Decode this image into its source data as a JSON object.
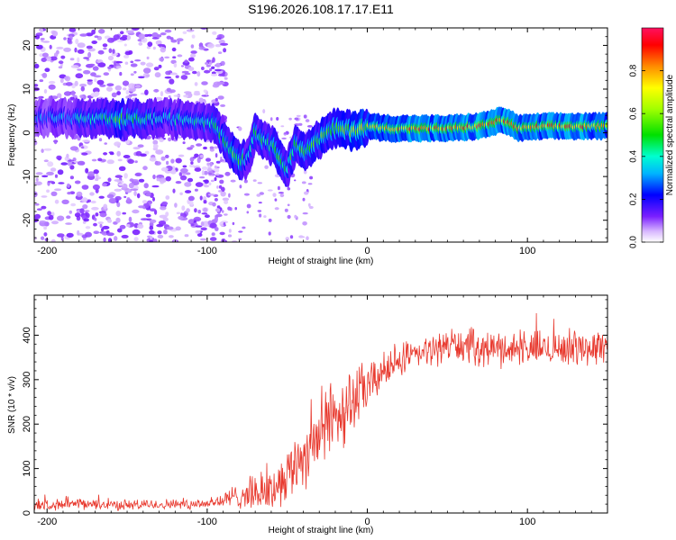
{
  "title": "S196.2026.108.17.17.E11",
  "colors": {
    "line": "#e8392e",
    "axis": "#000000"
  },
  "chart_data": [
    {
      "type": "heatmap",
      "title": "S196.2026.108.17.17.E11",
      "xlabel": "Height of straight line (km)",
      "ylabel": "Frequency (Hz)",
      "xlim": [
        -208,
        150
      ],
      "ylim": [
        -25,
        24
      ],
      "x_ticks": [
        -200,
        -100,
        0,
        100
      ],
      "x_tick_labels": [
        "-200",
        "-100",
        "0",
        "100"
      ],
      "y_ticks": [
        -20,
        -10,
        0,
        10,
        20
      ],
      "y_tick_labels": [
        "-20",
        "-10",
        "0",
        "10",
        "20"
      ],
      "colorbar": {
        "label": "Normalized spectral amplitude",
        "range": [
          0,
          1
        ],
        "ticks": [
          0.0,
          0.2,
          0.4,
          0.6,
          0.8
        ],
        "tick_labels": [
          "0.0",
          "0.2",
          "0.4",
          "0.6",
          "0.8"
        ]
      },
      "ridge": [
        {
          "x": -205,
          "f": 3.5,
          "amp": 0.3
        },
        {
          "x": -190,
          "f": 3.5,
          "amp": 0.35
        },
        {
          "x": -175,
          "f": 3.2,
          "amp": 0.4
        },
        {
          "x": -155,
          "f": 3.0,
          "amp": 0.55
        },
        {
          "x": -130,
          "f": 3.3,
          "amp": 0.4
        },
        {
          "x": -110,
          "f": 3.0,
          "amp": 0.4
        },
        {
          "x": -95,
          "f": 2.5,
          "amp": 0.45
        },
        {
          "x": -90,
          "f": -1.0,
          "amp": 0.45
        },
        {
          "x": -85,
          "f": -4.0,
          "amp": 0.55
        },
        {
          "x": -80,
          "f": -6.0,
          "amp": 0.55
        },
        {
          "x": -75,
          "f": -6.0,
          "amp": 0.45
        },
        {
          "x": -70,
          "f": 0.0,
          "amp": 0.45
        },
        {
          "x": -62,
          "f": -2.0,
          "amp": 0.5
        },
        {
          "x": -55,
          "f": -5.0,
          "amp": 0.55
        },
        {
          "x": -50,
          "f": -8.0,
          "amp": 0.5
        },
        {
          "x": -45,
          "f": -3.0,
          "amp": 0.55
        },
        {
          "x": -38,
          "f": -4.0,
          "amp": 0.5
        },
        {
          "x": -30,
          "f": -1.5,
          "amp": 0.55
        },
        {
          "x": -20,
          "f": 1.0,
          "amp": 0.6
        },
        {
          "x": -10,
          "f": 0.5,
          "amp": 0.65
        },
        {
          "x": 0,
          "f": 1.5,
          "amp": 0.7
        },
        {
          "x": 15,
          "f": 1.0,
          "amp": 0.85
        },
        {
          "x": 30,
          "f": 1.0,
          "amp": 0.9
        },
        {
          "x": 50,
          "f": 1.0,
          "amp": 0.8
        },
        {
          "x": 70,
          "f": 1.5,
          "amp": 0.9
        },
        {
          "x": 85,
          "f": 3.0,
          "amp": 0.9
        },
        {
          "x": 95,
          "f": 1.0,
          "amp": 0.85
        },
        {
          "x": 110,
          "f": 1.5,
          "amp": 0.85
        },
        {
          "x": 130,
          "f": 1.5,
          "amp": 0.9
        },
        {
          "x": 150,
          "f": 1.5,
          "amp": 0.8
        }
      ]
    },
    {
      "type": "line",
      "xlabel": "Height of straight line (km)",
      "ylabel": "SNR (10 * v/v)",
      "xlim": [
        -208,
        150
      ],
      "ylim": [
        0,
        490
      ],
      "x_ticks": [
        -200,
        -100,
        0,
        100
      ],
      "x_tick_labels": [
        "-200",
        "-100",
        "0",
        "100"
      ],
      "y_ticks": [
        0,
        100,
        200,
        300,
        400
      ],
      "y_tick_labels": [
        "0",
        "100",
        "200",
        "300",
        "400"
      ],
      "series": [
        {
          "name": "SNR",
          "x": [
            -208,
            -180,
            -150,
            -120,
            -100,
            -90,
            -80,
            -70,
            -60,
            -50,
            -40,
            -30,
            -20,
            -10,
            0,
            10,
            20,
            30,
            40,
            50,
            60,
            70,
            80,
            100,
            120,
            150
          ],
          "values": [
            18,
            20,
            18,
            20,
            22,
            28,
            40,
            45,
            50,
            90,
            130,
            180,
            220,
            250,
            280,
            320,
            340,
            355,
            365,
            380,
            375,
            372,
            370,
            370,
            372,
            372
          ],
          "noise_amplitude": [
            12,
            12,
            12,
            12,
            14,
            20,
            30,
            40,
            50,
            60,
            75,
            90,
            90,
            80,
            60,
            40,
            35,
            35,
            35,
            40,
            40,
            40,
            40,
            40,
            40,
            40
          ]
        }
      ]
    }
  ]
}
